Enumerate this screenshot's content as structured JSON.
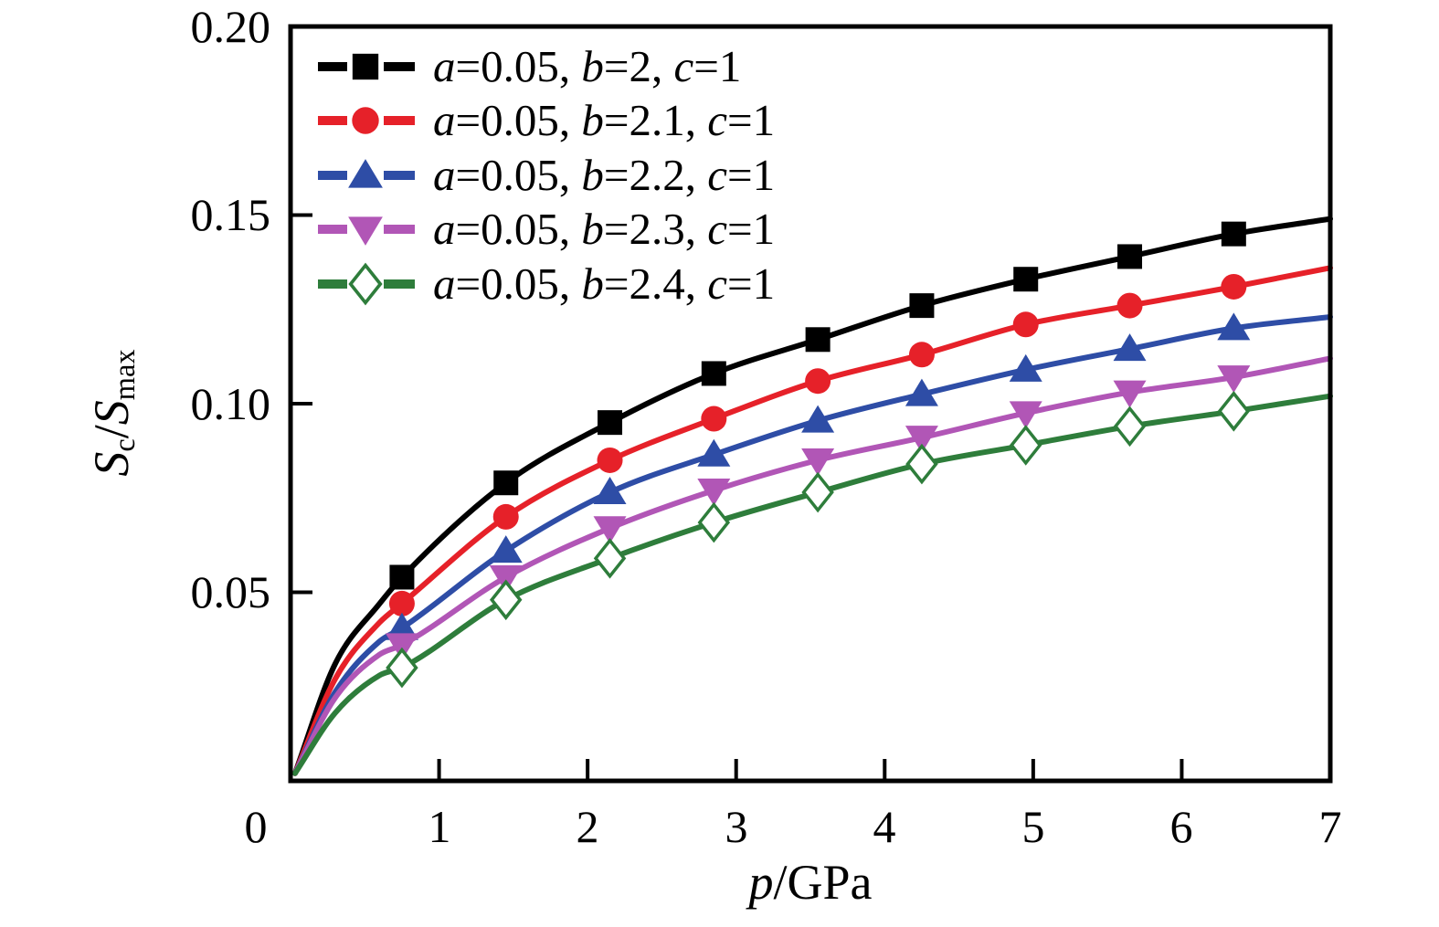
{
  "figure": {
    "background": "#ffffff",
    "axis_color": "#000000"
  },
  "chart_data": {
    "type": "line",
    "xlabel": "p/GPa",
    "xlabel_parts": [
      "p",
      "/GPa"
    ],
    "ylabel": "Sc/Smax",
    "ylabel_parts": [
      "S",
      "c",
      "/",
      "S",
      "max"
    ],
    "xlim": [
      0,
      7
    ],
    "ylim": [
      0,
      0.2
    ],
    "x_ticks": [
      0,
      1,
      2,
      3,
      4,
      5,
      6,
      7
    ],
    "x_tick_labels": [
      "0",
      "1",
      "2",
      "3",
      "4",
      "5",
      "6",
      "7"
    ],
    "y_ticks": [
      0.05,
      0.1,
      0.15,
      0.2
    ],
    "y_tick_labels": [
      "0.05",
      "0.10",
      "0.15",
      "0.20"
    ],
    "grid": false,
    "legend_position": "top-left",
    "curve_x": [
      0.03,
      0.3,
      0.6,
      0.75,
      1.45,
      2.15,
      2.85,
      3.55,
      4.25,
      4.95,
      5.65,
      6.35,
      7.0
    ],
    "marker_x": [
      0.75,
      1.45,
      2.15,
      2.85,
      3.55,
      4.25,
      4.95,
      5.65,
      6.35
    ],
    "series": [
      {
        "label": "a=0.05, b=2, c=1",
        "label_parts": [
          "a",
          "=0.05, ",
          "b",
          "=2, ",
          "c",
          "=1"
        ],
        "params": {
          "a": 0.05,
          "b": 2,
          "c": 1
        },
        "color": "#000000",
        "marker": "filled-square",
        "y": [
          0.002,
          0.031,
          0.047,
          0.054,
          0.079,
          0.095,
          0.108,
          0.117,
          0.126,
          0.133,
          0.139,
          0.145,
          0.149
        ]
      },
      {
        "label": "a=0.05, b=2.1, c=1",
        "label_parts": [
          "a",
          "=0.05, ",
          "b",
          "=2.1, ",
          "c",
          "=1"
        ],
        "params": {
          "a": 0.05,
          "b": 2.1,
          "c": 1
        },
        "color": "#e62129",
        "marker": "filled-circle",
        "y": [
          0.002,
          0.027,
          0.042,
          0.047,
          0.07,
          0.085,
          0.096,
          0.106,
          0.113,
          0.121,
          0.126,
          0.131,
          0.136
        ]
      },
      {
        "label": "a=0.05, b=2.2, c=1",
        "label_parts": [
          "a",
          "=0.05, ",
          "b",
          "=2.2, ",
          "c",
          "=1"
        ],
        "params": {
          "a": 0.05,
          "b": 2.2,
          "c": 1
        },
        "color": "#2e4da6",
        "marker": "filled-triangle-up",
        "y": [
          0.002,
          0.0235,
          0.037,
          0.0405,
          0.061,
          0.0765,
          0.0865,
          0.0955,
          0.1025,
          0.109,
          0.1145,
          0.12,
          0.123
        ]
      },
      {
        "label": "a=0.05, b=2.3, c=1",
        "label_parts": [
          "a",
          "=0.05, ",
          "b",
          "=2.3, ",
          "c",
          "=1"
        ],
        "params": {
          "a": 0.05,
          "b": 2.3,
          "c": 1
        },
        "color": "#b156b6",
        "marker": "filled-triangle-down",
        "y": [
          0.002,
          0.022,
          0.0335,
          0.036,
          0.054,
          0.067,
          0.077,
          0.085,
          0.091,
          0.0975,
          0.103,
          0.107,
          0.112
        ]
      },
      {
        "label": "a=0.05, b=2.4, c=1",
        "label_parts": [
          "a",
          "=0.05, ",
          "b",
          "=2.4, ",
          "c",
          "=1"
        ],
        "params": {
          "a": 0.05,
          "b": 2.4,
          "c": 1
        },
        "color": "#2e7d3b",
        "marker": "open-diamond",
        "y": [
          0.002,
          0.018,
          0.028,
          0.03,
          0.048,
          0.059,
          0.0685,
          0.0765,
          0.084,
          0.089,
          0.094,
          0.098,
          0.102
        ]
      }
    ]
  }
}
